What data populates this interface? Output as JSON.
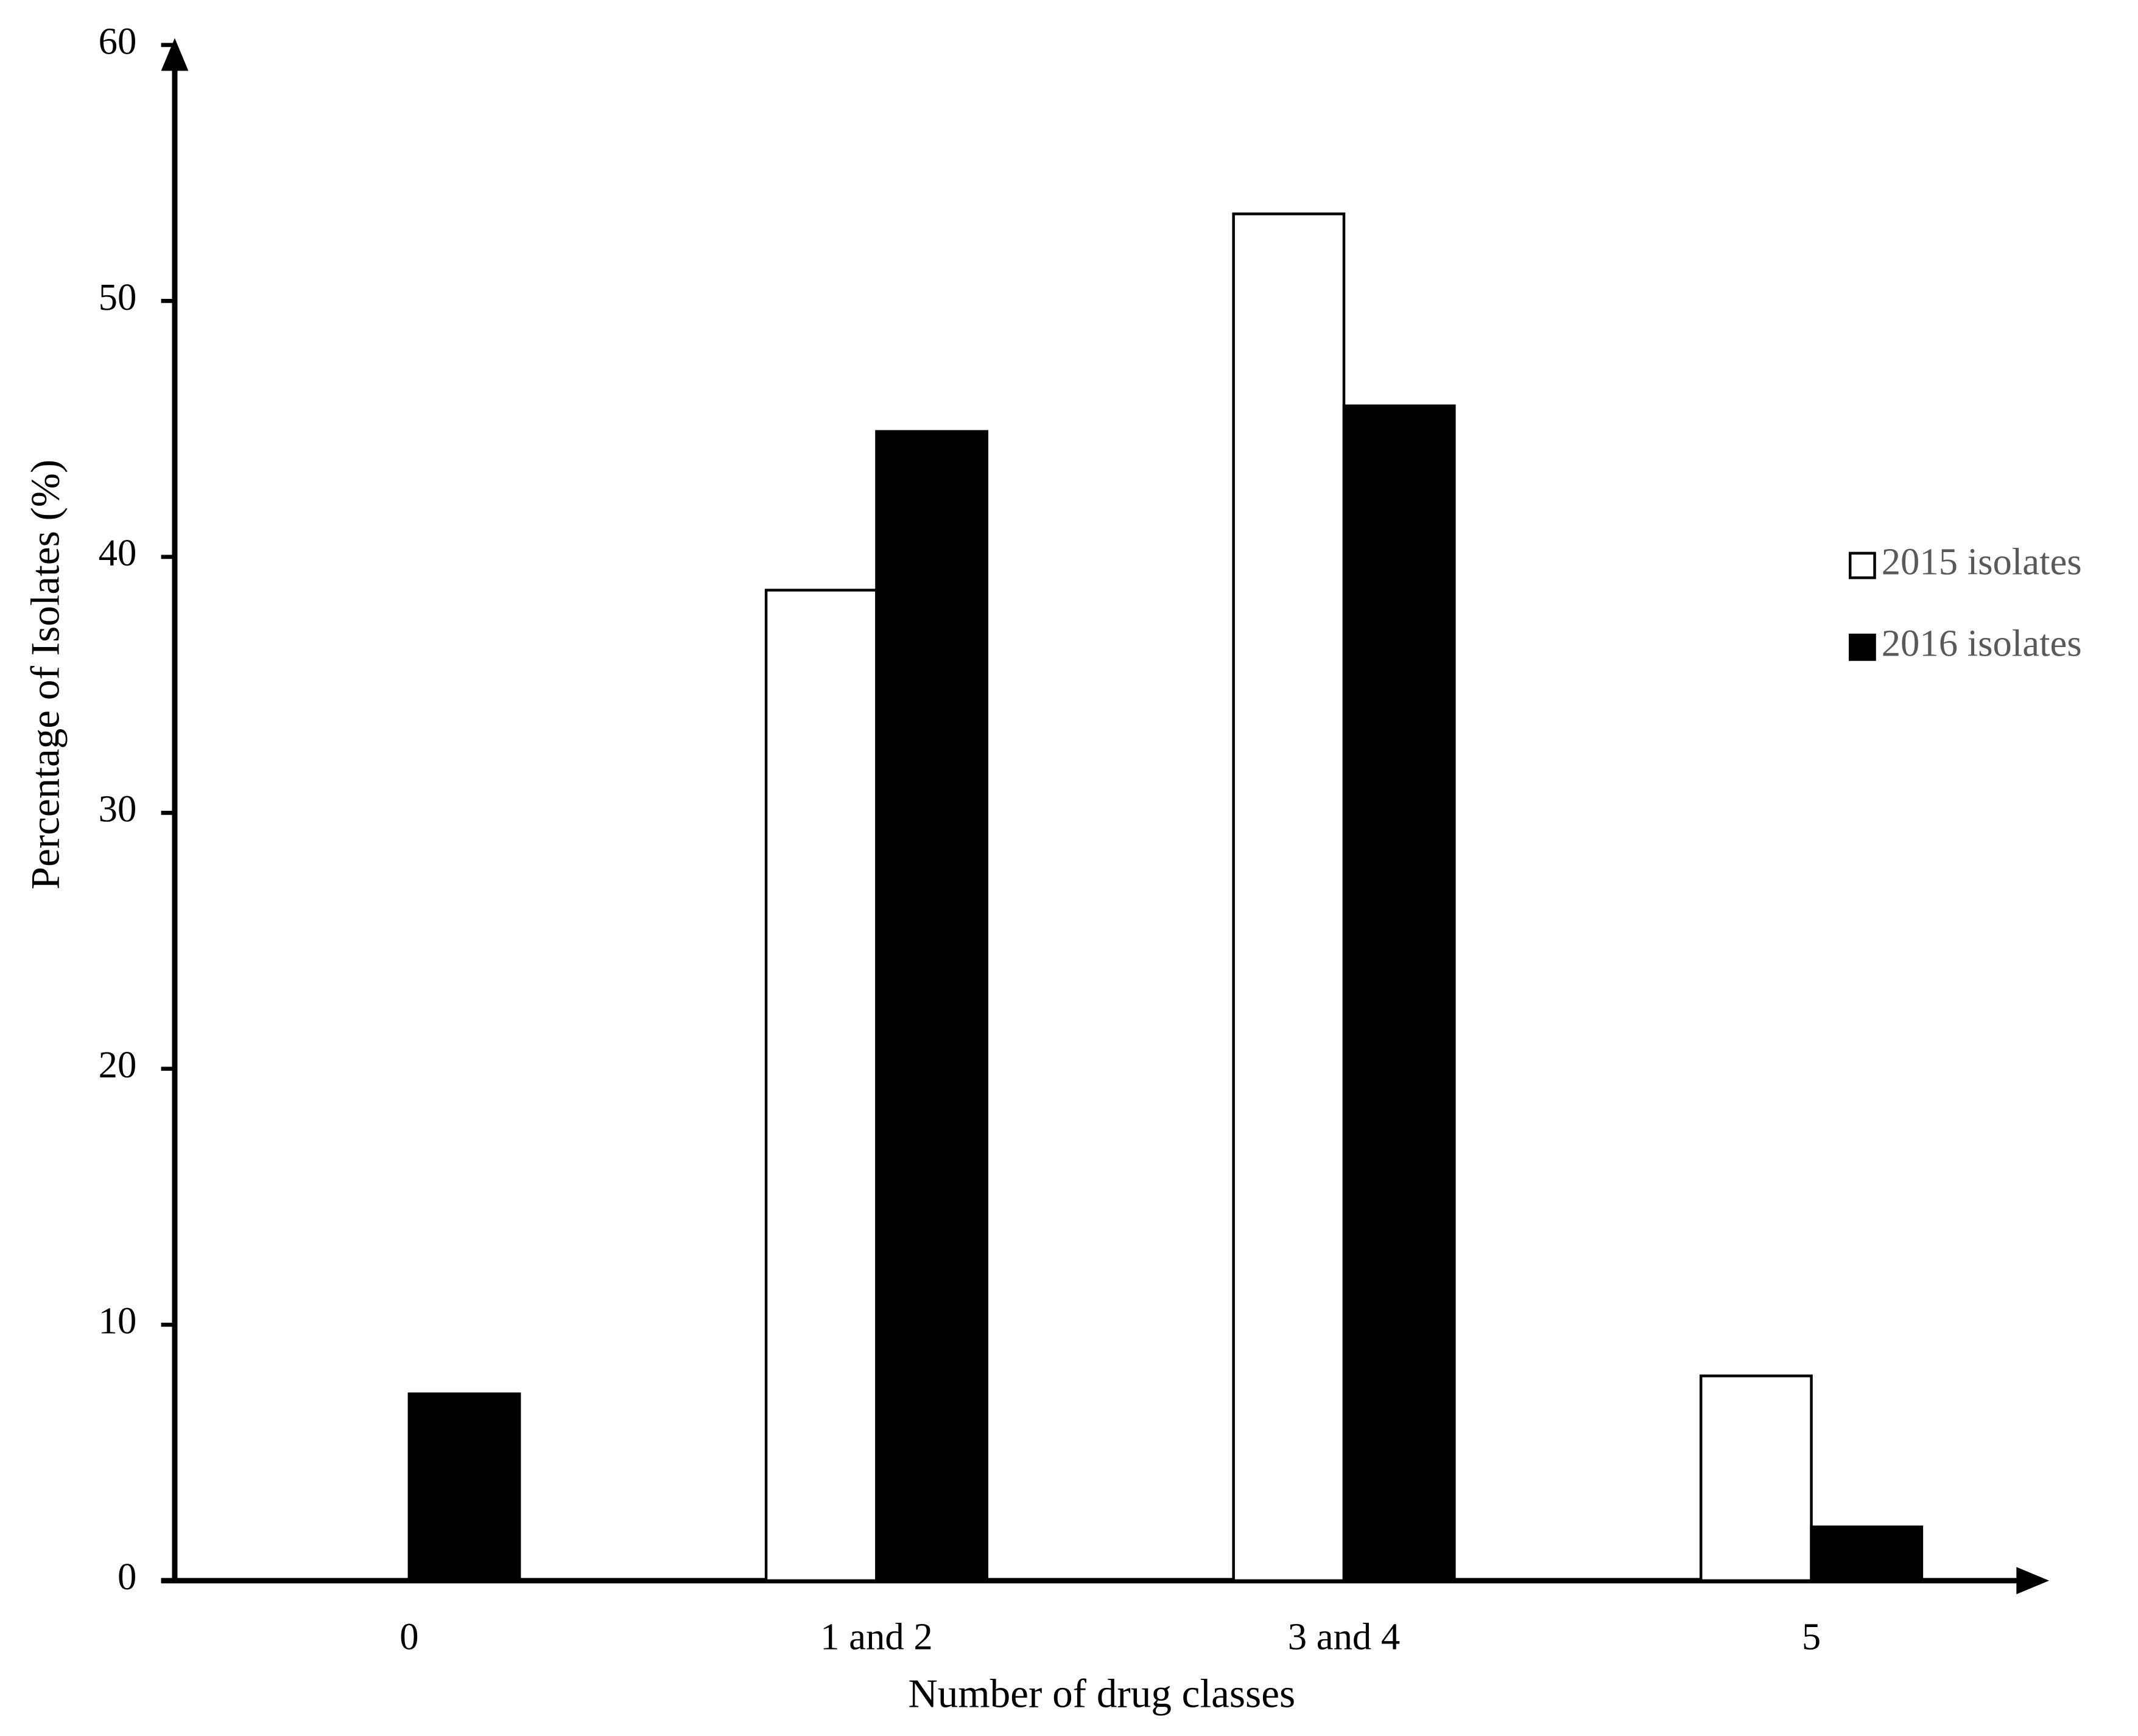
{
  "chart_data": {
    "type": "bar",
    "x_label": "Number of drug classes",
    "y_label": "Percentage of Isolates (%)",
    "categories": [
      "0",
      "1 and 2",
      "3 and 4",
      "5"
    ],
    "series": [
      {
        "name": "2015 isolates",
        "color": "#ffffff",
        "values": [
          0,
          38.7,
          53.4,
          8.0
        ]
      },
      {
        "name": "2016 isolates",
        "color": "#000000",
        "values": [
          7.3,
          44.9,
          45.9,
          2.1
        ]
      }
    ],
    "ylim": [
      0,
      60
    ],
    "yticks": [
      0,
      10,
      20,
      30,
      40,
      50,
      60
    ],
    "grid": false,
    "legend": "right"
  }
}
